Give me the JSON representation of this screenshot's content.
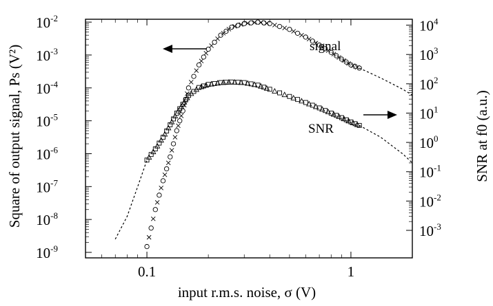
{
  "chart_data": {
    "type": "scatter",
    "title": "",
    "xlabel": "input r.m.s. noise, σ (V)",
    "ylabel_left": "Square of output signal, Ps (V²)",
    "ylabel_right": "SNR at f0 (a.u.)",
    "xscale": "log",
    "yscale_left": "log",
    "yscale_right": "log",
    "xlim": [
      0.05,
      2.0
    ],
    "ylim_left": [
      1e-09,
      0.01
    ],
    "ylim_right": [
      0.001,
      10000.0
    ],
    "x_ticks": [
      {
        "value": 0.1,
        "label": "0.1"
      },
      {
        "value": 1,
        "label": "1"
      }
    ],
    "y_left_ticks": [
      {
        "exp": -9,
        "label": "10",
        "sup": "-9"
      },
      {
        "exp": -8,
        "label": "10",
        "sup": "-8"
      },
      {
        "exp": -7,
        "label": "10",
        "sup": "-7"
      },
      {
        "exp": -6,
        "label": "10",
        "sup": "-6"
      },
      {
        "exp": -5,
        "label": "10",
        "sup": "-5"
      },
      {
        "exp": -4,
        "label": "10",
        "sup": "-4"
      },
      {
        "exp": -3,
        "label": "10",
        "sup": "-3"
      },
      {
        "exp": -2,
        "label": "10",
        "sup": "-2"
      }
    ],
    "y_right_ticks": [
      {
        "exp": -3,
        "label": "10",
        "sup": "-3"
      },
      {
        "exp": -2,
        "label": "10",
        "sup": "-2"
      },
      {
        "exp": -1,
        "label": "10",
        "sup": "-1"
      },
      {
        "exp": 0,
        "label": "10",
        "sup": "0"
      },
      {
        "exp": 1,
        "label": "10",
        "sup": "1"
      },
      {
        "exp": 2,
        "label": "10",
        "sup": "2"
      },
      {
        "exp": 3,
        "label": "10",
        "sup": "3"
      },
      {
        "exp": 4,
        "label": "10",
        "sup": "4"
      }
    ],
    "annotations": [
      {
        "text": "signal",
        "axis": "left",
        "arrow": "left"
      },
      {
        "text": "SNR",
        "axis": "right",
        "arrow": "right"
      }
    ],
    "series": [
      {
        "name": "signal",
        "axis": "left",
        "marker": "circle-cross",
        "x": [
          0.1,
          0.11,
          0.12,
          0.13,
          0.14,
          0.15,
          0.16,
          0.18,
          0.2,
          0.23,
          0.26,
          0.3,
          0.35,
          0.4,
          0.5,
          0.6,
          0.7,
          0.8,
          0.9,
          1.0,
          1.1
        ],
        "y": [
          1.5e-09,
          2e-08,
          1.5e-07,
          8e-07,
          5e-06,
          2e-05,
          0.0001,
          0.0005,
          0.0015,
          0.004,
          0.007,
          0.009,
          0.01,
          0.009,
          0.006,
          0.0035,
          0.002,
          0.0012,
          0.00075,
          0.0005,
          0.0004
        ],
        "fit_x": [
          1.1,
          1.4,
          1.8,
          2.0
        ],
        "fit_y": [
          0.0004,
          0.0002,
          9e-05,
          6e-05
        ]
      },
      {
        "name": "SNR",
        "axis": "right",
        "marker": "square-triangle",
        "x": [
          0.1,
          0.11,
          0.12,
          0.13,
          0.14,
          0.15,
          0.16,
          0.18,
          0.2,
          0.23,
          0.26,
          0.3,
          0.35,
          0.4,
          0.5,
          0.6,
          0.7,
          0.8,
          0.9,
          1.0,
          1.1
        ],
        "y": [
          0.25,
          0.6,
          1.5,
          4,
          10,
          20,
          40,
          75,
          95,
          110,
          115,
          110,
          90,
          65,
          37,
          23,
          15,
          10,
          7,
          5,
          3.8
        ],
        "fit_x": [
          0.07,
          0.08,
          0.09,
          0.1,
          1.1,
          1.4,
          1.8,
          2.0
        ],
        "fit_y": [
          0.0005,
          0.003,
          0.03,
          0.25,
          3.8,
          1.5,
          0.4,
          0.2
        ]
      }
    ],
    "grid": false
  }
}
